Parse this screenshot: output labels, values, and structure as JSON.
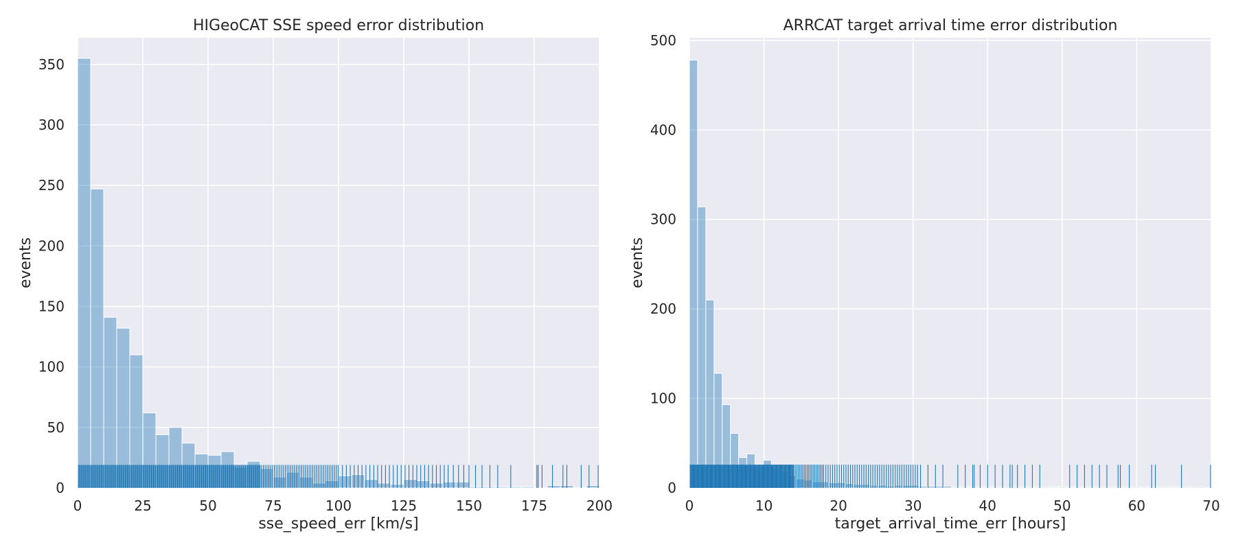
{
  "chart_data": [
    {
      "type": "histogram",
      "title": "HIGeoCAT SSE speed error distribution",
      "xlabel": "sse_speed_err [km/s]",
      "ylabel": "events",
      "xlim": [
        0,
        200
      ],
      "ylim": [
        0,
        372
      ],
      "xticks": [
        0,
        25,
        50,
        75,
        100,
        125,
        150,
        175,
        200
      ],
      "yticks": [
        0,
        50,
        100,
        150,
        200,
        250,
        300,
        350
      ],
      "grid": true,
      "bin_width": 5,
      "bin_start": 0,
      "values": [
        355,
        247,
        141,
        132,
        110,
        62,
        44,
        50,
        37,
        28,
        27,
        30,
        17,
        22,
        16,
        9,
        13,
        9,
        4,
        6,
        10,
        11,
        7,
        4,
        3,
        7,
        6,
        4,
        5,
        5,
        1,
        1,
        1,
        1,
        1,
        0,
        2,
        2,
        0,
        2,
        4
      ],
      "bar_color": "#1f77b4",
      "rug_color": "#1f77b4",
      "rug_height_data": 19,
      "rug_values": [
        0.3,
        0.7,
        1.1,
        1.5,
        1.9,
        2.3,
        2.7,
        3.1,
        3.5,
        3.9,
        4.3,
        4.7,
        5.1,
        5.5,
        5.9,
        6.3,
        6.7,
        7.1,
        7.5,
        7.9,
        8.3,
        8.7,
        9.1,
        9.5,
        9.9,
        10.3,
        10.7,
        11.1,
        11.5,
        11.9,
        12.3,
        12.7,
        13.1,
        13.5,
        13.9,
        14.3,
        14.7,
        15.1,
        15.5,
        15.9,
        16.3,
        16.7,
        17.1,
        17.5,
        17.9,
        18.3,
        18.7,
        19.1,
        19.5,
        19.9,
        20.3,
        20.7,
        21.1,
        21.5,
        21.9,
        22.3,
        22.7,
        23.1,
        23.5,
        23.9,
        24.3,
        24.7,
        25.1,
        25.5,
        25.9,
        26.3,
        26.7,
        27.1,
        27.5,
        27.9,
        28.3,
        28.7,
        29.1,
        29.5,
        29.9,
        30.3,
        30.7,
        31.1,
        31.5,
        31.9,
        32.3,
        32.7,
        33.1,
        33.5,
        33.9,
        34.3,
        34.7,
        35.1,
        35.5,
        35.9,
        36.3,
        36.7,
        37.1,
        37.5,
        37.9,
        38.3,
        38.7,
        39.1,
        39.5,
        39.9,
        40.3,
        40.7,
        41.1,
        41.5,
        41.9,
        42.3,
        42.7,
        43.1,
        43.5,
        43.9,
        44.3,
        44.7,
        45.1,
        45.5,
        45.9,
        46.3,
        46.7,
        47.1,
        47.5,
        47.9,
        48.3,
        48.7,
        49.1,
        49.5,
        49.9,
        50.3,
        50.7,
        51.1,
        51.5,
        51.9,
        52.3,
        52.7,
        53.1,
        53.5,
        53.9,
        54.3,
        54.7,
        55.1,
        55.5,
        55.9,
        56.3,
        56.7,
        57.1,
        57.5,
        57.9,
        58.3,
        58.7,
        59.1,
        59.5,
        59.9,
        60.3,
        60.7,
        61.1,
        61.5,
        61.9,
        62.3,
        62.7,
        63.1,
        63.5,
        63.9,
        64.3,
        64.7,
        65.1,
        65.5,
        65.9,
        66.3,
        66.7,
        67.1,
        67.5,
        67.9,
        68.3,
        68.7,
        69.1,
        69.5,
        69.9,
        70.5,
        71.2,
        71.9,
        72.6,
        73.3,
        74.0,
        74.7,
        75.4,
        76.1,
        76.8,
        77.5,
        78.2,
        78.9,
        79.6,
        80.3,
        81.0,
        81.7,
        82.4,
        83.1,
        83.8,
        84.5,
        85.2,
        85.9,
        86.6,
        87.3,
        88.0,
        88.7,
        89.4,
        90.1,
        90.8,
        91.5,
        92.2,
        92.9,
        93.6,
        94.3,
        95.0,
        95.7,
        96.4,
        97.1,
        97.8,
        98.5,
        99.2,
        99.9,
        101.5,
        103.0,
        104.5,
        106.0,
        107.5,
        109.0,
        110.5,
        112.0,
        113.5,
        115.0,
        116.5,
        118.0,
        119.5,
        121.0,
        122.5,
        124.0,
        125.5,
        127.0,
        128.5,
        130.0,
        131.5,
        133.0,
        134.5,
        136.0,
        137.5,
        139.0,
        140.5,
        142.0,
        144.0,
        146.0,
        148.0,
        150.0,
        152.5,
        155.0,
        158.0,
        161.0,
        166.0,
        176.0,
        176.5,
        178.0,
        182.0,
        186.0,
        187.5,
        193.0,
        196.0,
        199.5
      ]
    },
    {
      "type": "histogram",
      "title": "ARRCAT target arrival time error distribution",
      "xlabel": "target_arrival_time_err [hours]",
      "ylabel": "events",
      "xlim": [
        0,
        70
      ],
      "ylim": [
        0,
        503
      ],
      "xticks": [
        0,
        10,
        20,
        30,
        40,
        50,
        60,
        70
      ],
      "yticks": [
        0,
        100,
        200,
        300,
        400,
        500
      ],
      "grid": true,
      "bin_width": 1.1,
      "bin_start": 0,
      "values": [
        478,
        314,
        210,
        128,
        93,
        61,
        34,
        38,
        23,
        31,
        22,
        19,
        14,
        10,
        9,
        7,
        7,
        6,
        6,
        5,
        4,
        4,
        3,
        3,
        2,
        3,
        3,
        3,
        2,
        2,
        2,
        2,
        1,
        1,
        1,
        1,
        1,
        1,
        1,
        1,
        1,
        1,
        1,
        1,
        1,
        1,
        1,
        1,
        1,
        1,
        1,
        1,
        1,
        1,
        1,
        1,
        1,
        1,
        1,
        1,
        1,
        1,
        1
      ],
      "bar_color": "#1f77b4",
      "rug_color": "#1f77b4",
      "rug_height_data": 26,
      "rug_values": [
        0.1,
        0.2,
        0.3,
        0.4,
        0.5,
        0.6,
        0.7,
        0.8,
        0.9,
        1.0,
        1.1,
        1.2,
        1.3,
        1.4,
        1.5,
        1.6,
        1.7,
        1.8,
        1.9,
        2.0,
        2.1,
        2.2,
        2.3,
        2.4,
        2.5,
        2.6,
        2.7,
        2.8,
        2.9,
        3.0,
        3.1,
        3.2,
        3.3,
        3.4,
        3.5,
        3.6,
        3.7,
        3.8,
        3.9,
        4.0,
        4.1,
        4.2,
        4.3,
        4.4,
        4.5,
        4.6,
        4.7,
        4.8,
        4.9,
        5.0,
        5.1,
        5.2,
        5.3,
        5.4,
        5.5,
        5.6,
        5.7,
        5.8,
        5.9,
        6.0,
        6.1,
        6.2,
        6.3,
        6.4,
        6.5,
        6.6,
        6.7,
        6.8,
        6.9,
        7.0,
        7.1,
        7.2,
        7.3,
        7.4,
        7.5,
        7.6,
        7.7,
        7.8,
        7.9,
        8.0,
        8.1,
        8.2,
        8.3,
        8.4,
        8.5,
        8.6,
        8.7,
        8.8,
        8.9,
        9.0,
        9.1,
        9.2,
        9.3,
        9.4,
        9.5,
        9.6,
        9.7,
        9.8,
        9.9,
        10.0,
        10.1,
        10.2,
        10.3,
        10.4,
        10.5,
        10.6,
        10.7,
        10.8,
        10.9,
        11.0,
        11.1,
        11.2,
        11.3,
        11.4,
        11.5,
        11.6,
        11.7,
        11.8,
        11.9,
        12.0,
        12.1,
        12.2,
        12.3,
        12.4,
        12.5,
        12.6,
        12.7,
        12.8,
        12.9,
        13.0,
        13.1,
        13.2,
        13.3,
        13.4,
        13.5,
        13.6,
        13.7,
        13.8,
        13.9,
        14.0,
        14.2,
        14.4,
        14.6,
        14.8,
        15.0,
        15.2,
        15.4,
        15.6,
        15.8,
        16.0,
        16.2,
        16.4,
        16.6,
        16.8,
        17.0,
        17.2,
        17.4,
        17.6,
        17.8,
        18.0,
        18.3,
        18.6,
        18.9,
        19.2,
        19.5,
        19.8,
        20.1,
        20.4,
        20.7,
        21.0,
        21.3,
        21.6,
        21.9,
        22.2,
        22.5,
        22.8,
        23.1,
        23.4,
        23.7,
        24.0,
        24.3,
        24.6,
        24.9,
        25.2,
        25.5,
        25.8,
        26.1,
        26.4,
        26.7,
        27.0,
        27.3,
        27.6,
        27.9,
        28.2,
        28.5,
        28.8,
        29.1,
        29.4,
        29.7,
        30.0,
        30.3,
        30.6,
        31.0,
        32.0,
        33.0,
        34.0,
        36.0,
        37.0,
        38.0,
        38.2,
        39.0,
        40.0,
        41.0,
        42.0,
        43.0,
        43.3,
        44.0,
        45.0,
        46.0,
        47.0,
        51.0,
        52.0,
        53.0,
        54.0,
        55.0,
        56.0,
        57.5,
        57.8,
        59.0,
        62.0,
        62.5,
        66.0,
        69.9
      ]
    }
  ]
}
